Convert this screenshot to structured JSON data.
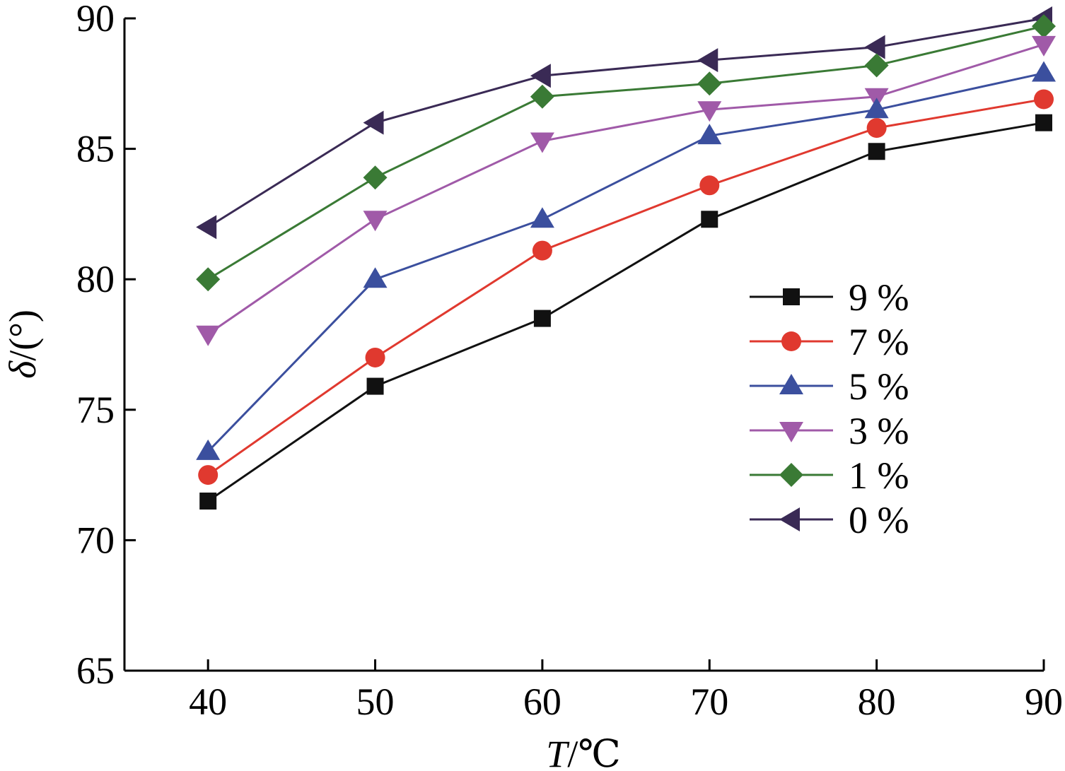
{
  "chart_data": {
    "type": "line",
    "x": [
      40,
      50,
      60,
      70,
      80,
      90
    ],
    "xticks": [
      "40",
      "50",
      "60",
      "70",
      "80",
      "90"
    ],
    "yticks": [
      "65",
      "70",
      "75",
      "80",
      "85",
      "90"
    ],
    "xlim": [
      35,
      90
    ],
    "ylim": [
      65,
      90
    ],
    "xlabel_italic": "T",
    "xlabel_rest": "/℃",
    "ylabel_italic": "δ",
    "ylabel_rest": "/(°)",
    "legend_position": "center-right",
    "grid": false,
    "series": [
      {
        "name": "9 %",
        "color": "#111111",
        "marker": "square",
        "values": [
          71.5,
          75.9,
          78.5,
          82.3,
          84.9,
          86.0
        ]
      },
      {
        "name": "7 %",
        "color": "#e0392f",
        "marker": "circle",
        "values": [
          72.5,
          77.0,
          81.1,
          83.6,
          85.8,
          86.9
        ]
      },
      {
        "name": "5 %",
        "color": "#3b4f9e",
        "marker": "triangle-up",
        "values": [
          73.4,
          80.0,
          82.3,
          85.5,
          86.5,
          87.9
        ]
      },
      {
        "name": "3 %",
        "color": "#a05aa8",
        "marker": "triangle-down",
        "values": [
          77.9,
          82.3,
          85.3,
          86.5,
          87.0,
          89.0
        ]
      },
      {
        "name": "1 %",
        "color": "#3a7a35",
        "marker": "diamond",
        "values": [
          80.0,
          83.9,
          87.0,
          87.5,
          88.2,
          89.7
        ]
      },
      {
        "name": "0 %",
        "color": "#3a2a55",
        "marker": "triangle-left",
        "values": [
          82.0,
          86.0,
          87.8,
          88.4,
          88.9,
          90.0
        ]
      }
    ]
  }
}
